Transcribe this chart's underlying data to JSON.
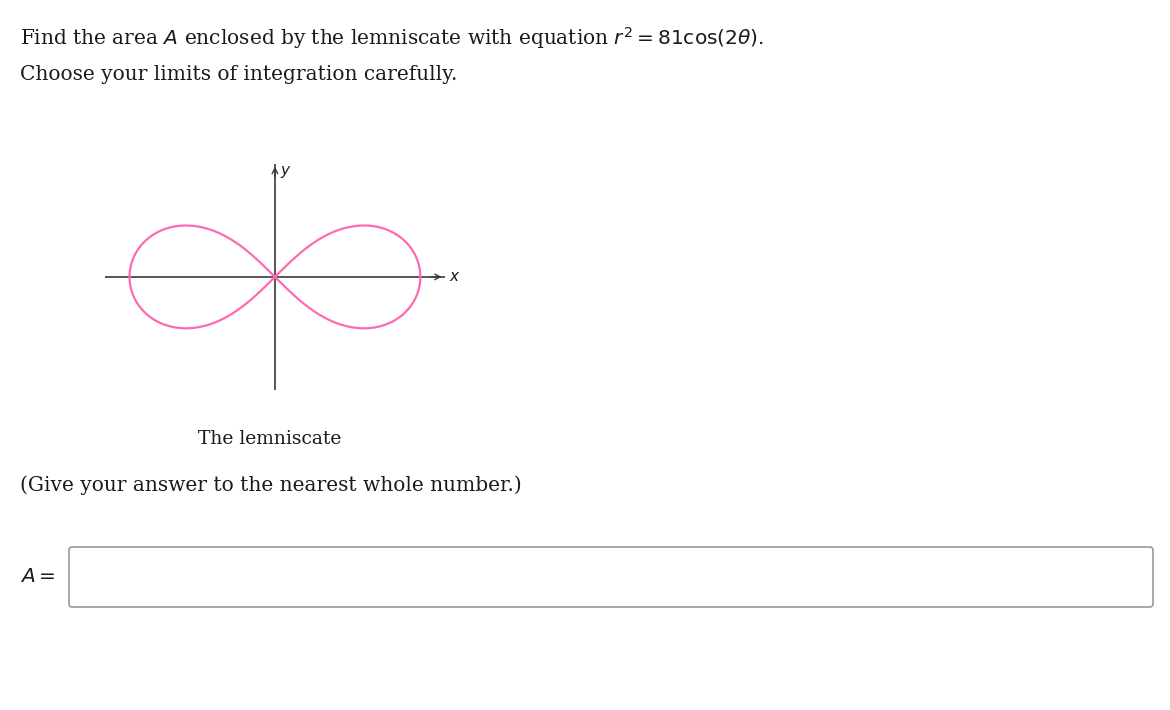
{
  "line1": "Find the area $A$ enclosed by the lemniscate with equation $r^2 = 81\\cos(2\\theta)$.",
  "line2": "Choose your limits of integration carefully.",
  "caption": "The lemniscate",
  "give_answer": "(Give your answer to the nearest whole number.)",
  "A_label": "$A =$",
  "lemniscate_color": "#FF69B4",
  "axis_color": "#3a3a3a",
  "text_color": "#1a1a1a",
  "background_color": "#ffffff",
  "lemniscate_linewidth": 1.6,
  "axis_linewidth": 1.2,
  "fontsize_main": 14.5,
  "fontsize_caption": 13.5
}
